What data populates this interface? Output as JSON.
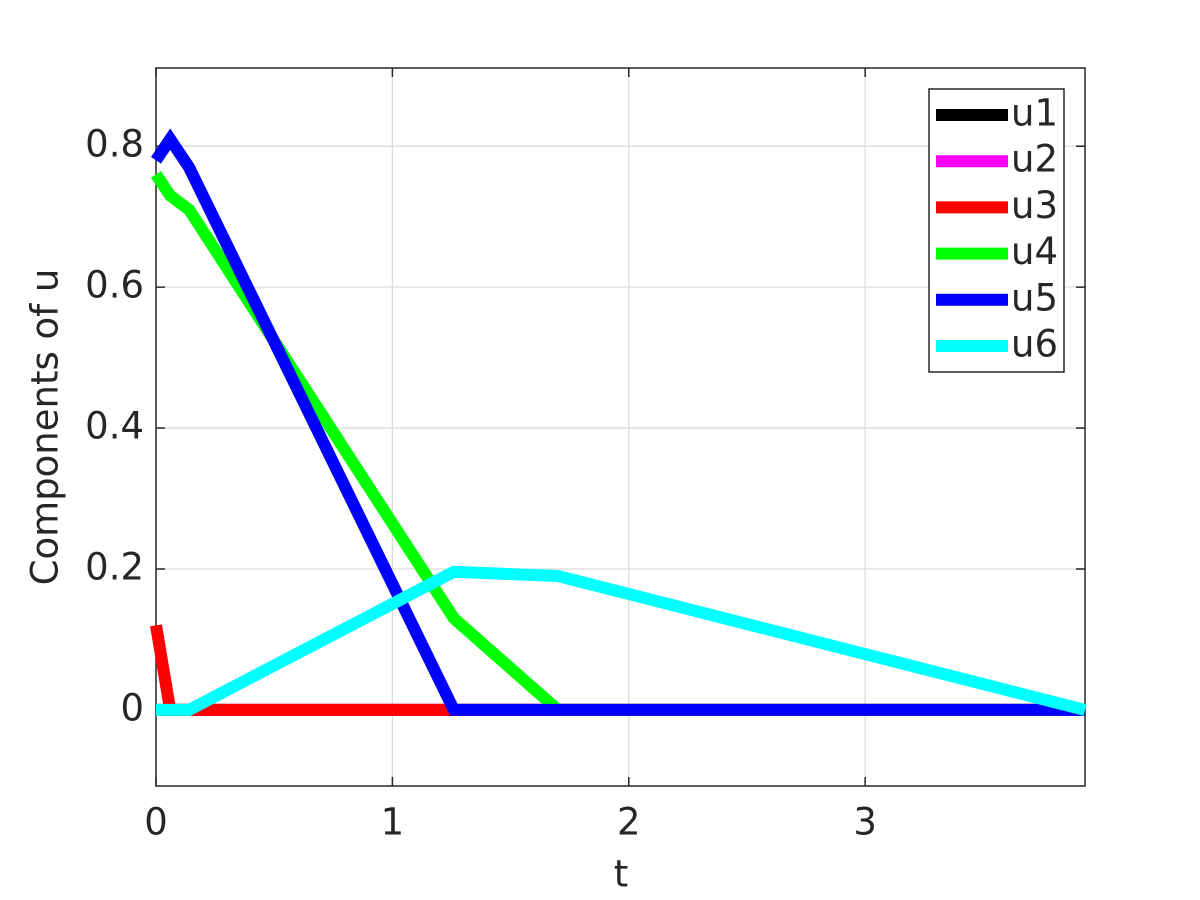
{
  "chart_data": {
    "type": "line",
    "xlabel": "t",
    "ylabel": "Components of u",
    "x": [
      0,
      0.06,
      0.14,
      1.26,
      1.7,
      3.93
    ],
    "series": [
      {
        "name": "u1",
        "color": "#000000",
        "values": [
          0,
          0,
          0,
          0,
          0,
          0
        ]
      },
      {
        "name": "u2",
        "color": "#ff00ff",
        "values": [
          0,
          0,
          0,
          0,
          0,
          0
        ]
      },
      {
        "name": "u3",
        "color": "#ff0000",
        "values": [
          0.12,
          0,
          0,
          0,
          0,
          0
        ]
      },
      {
        "name": "u4",
        "color": "#00ff00",
        "values": [
          0.76,
          0.73,
          0.71,
          0.13,
          0,
          0
        ]
      },
      {
        "name": "u5",
        "color": "#0000ff",
        "values": [
          0.78,
          0.81,
          0.77,
          0,
          0,
          0
        ]
      },
      {
        "name": "u6",
        "color": "#00ffff",
        "values": [
          0,
          0,
          0,
          0.196,
          0.19,
          0
        ]
      }
    ],
    "xlim": [
      0,
      3.93
    ],
    "ylim": [
      -0.108,
      0.911
    ],
    "xticks": [
      0,
      1,
      2,
      3
    ],
    "yticks": [
      0,
      0.2,
      0.4,
      0.6,
      0.8
    ],
    "grid": true,
    "legend": "top-right"
  }
}
